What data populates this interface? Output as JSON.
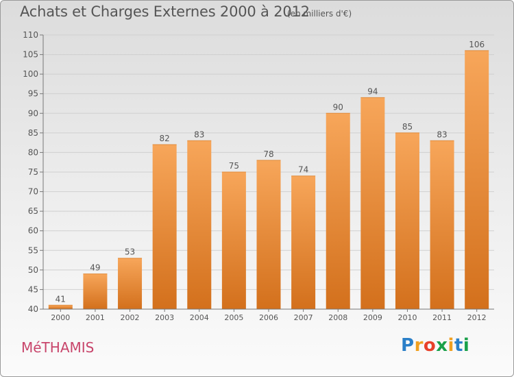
{
  "header": {
    "title": "Achats et Charges Externes 2000 à 2012",
    "subtitle": "(en milliers d'€)"
  },
  "footer": {
    "commune": "MéTHAMIS",
    "logo_letters": [
      "P",
      "r",
      "o",
      "x",
      "i",
      "t",
      "i"
    ],
    "logo_colors": [
      "#2a7fc8",
      "#f0a020",
      "#e8402a",
      "#1aa04a",
      "#f0a020",
      "#2a7fc8",
      "#1aa04a"
    ]
  },
  "colors": {
    "bar_top": "#f7a65a",
    "bar_bottom": "#d3701c",
    "text": "#555555",
    "grid": "#cfcfcf",
    "commune": "#c8456b"
  },
  "chart_data": {
    "type": "bar",
    "categories": [
      "2000",
      "2001",
      "2002",
      "2003",
      "2004",
      "2005",
      "2006",
      "2007",
      "2008",
      "2009",
      "2010",
      "2011",
      "2012"
    ],
    "values": [
      41,
      49,
      53,
      82,
      83,
      75,
      78,
      74,
      90,
      94,
      85,
      83,
      106
    ],
    "title": "Achats et Charges Externes 2000 à 2012",
    "subtitle": "(en milliers d'€)",
    "xlabel": "",
    "ylabel": "",
    "ylim": [
      40,
      110
    ],
    "yticks": [
      40,
      45,
      50,
      55,
      60,
      65,
      70,
      75,
      80,
      85,
      90,
      95,
      100,
      105,
      110
    ],
    "grid": true,
    "data_labels": true
  }
}
